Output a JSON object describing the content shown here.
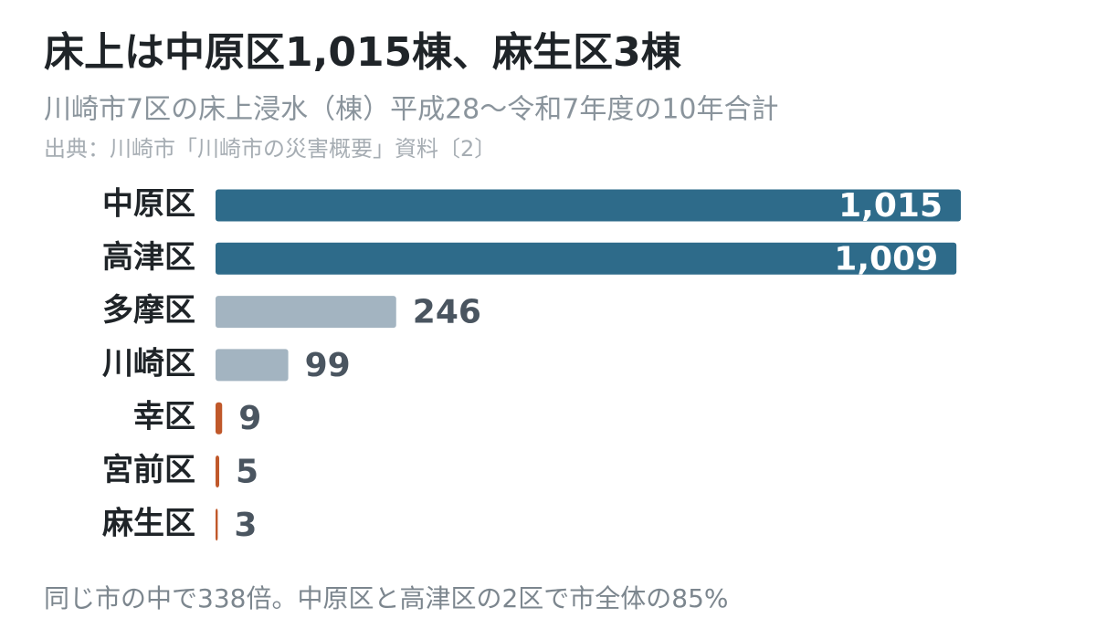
{
  "chart_data": {
    "type": "hbar",
    "title": "床上は中原区1,015棟、麻生区3棟",
    "subtitle": "川崎市7区の床上浸水（棟）平成28〜令和7年度の10年合計",
    "source": "出典：川崎市「川崎市の災害概要」資料〔2〕",
    "note": "同じ市の中で338倍。中原区と高津区の2区で市全体の85%",
    "categories": [
      "中原区",
      "高津区",
      "多摩区",
      "川崎区",
      "幸区",
      "宮前区",
      "麻生区"
    ],
    "values": [
      1015,
      1009,
      246,
      99,
      9,
      5,
      3
    ],
    "value_labels": [
      "1,015",
      "1,009",
      "246",
      "99",
      "9",
      "5",
      "3"
    ],
    "colors": [
      "#2e6b8a",
      "#2e6b8a",
      "#a3b4c1",
      "#a3b4c1",
      "#c0582a",
      "#c0582a",
      "#c0582a"
    ]
  }
}
